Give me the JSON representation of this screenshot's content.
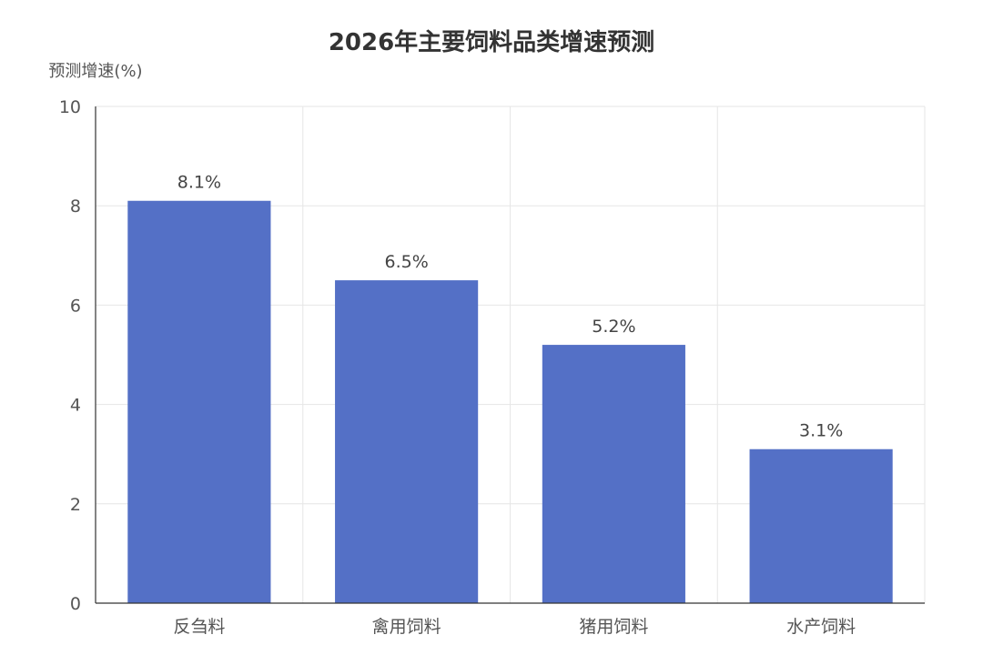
{
  "chart_data": {
    "type": "bar",
    "title": "2026年主要饲料品类增速预测",
    "ylabel": "预测增速(%)",
    "xlabel": "",
    "categories": [
      "反刍料",
      "禽用饲料",
      "猪用饲料",
      "水产饲料"
    ],
    "values": [
      8.1,
      6.5,
      5.2,
      3.1
    ],
    "data_labels": [
      "8.1%",
      "6.5%",
      "5.2%",
      "3.1%"
    ],
    "ylim": [
      0,
      10
    ],
    "yticks": [
      0,
      2,
      4,
      6,
      8,
      10
    ],
    "grid": true,
    "legend": "none"
  },
  "colors": {
    "bar": "#5470c6",
    "grid": "#e6e6e6",
    "axis": "#333333"
  }
}
